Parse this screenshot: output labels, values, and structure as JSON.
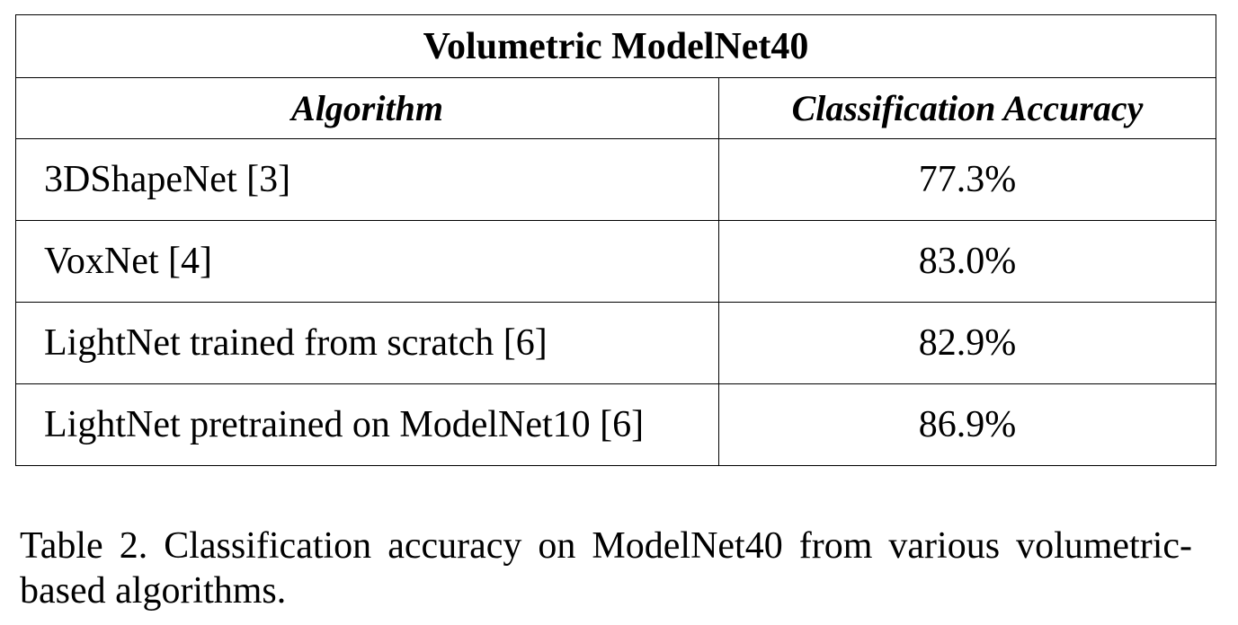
{
  "table": {
    "title": "Volumetric ModelNet40",
    "headers": {
      "algorithm": "Algorithm",
      "accuracy": "Classification Accuracy"
    },
    "rows": [
      {
        "algorithm": "3DShapeNet [3]",
        "accuracy": "77.3%"
      },
      {
        "algorithm": "VoxNet [4]",
        "accuracy": "83.0%"
      },
      {
        "algorithm": "LightNet trained from scratch [6]",
        "accuracy": "82.9%"
      },
      {
        "algorithm": "LightNet pretrained on ModelNet10 [6]",
        "accuracy": "86.9%"
      }
    ]
  },
  "caption": "Table 2. Classification accuracy on ModelNet40 from various volumetric-based algorithms."
}
